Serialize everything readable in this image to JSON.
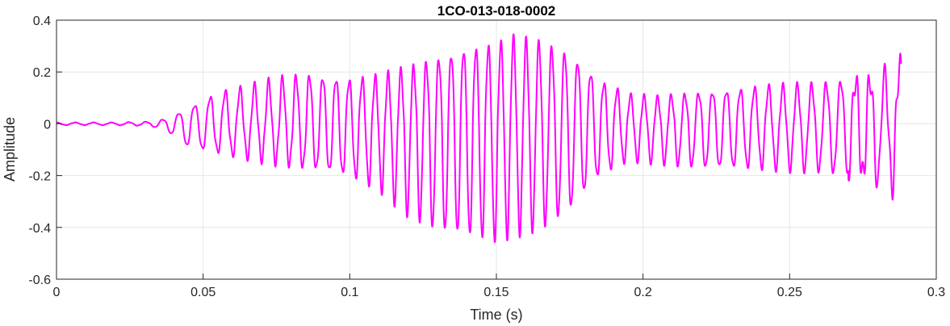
{
  "chart_data": {
    "type": "line",
    "title": "1CO-013-018-0002",
    "xlabel": "Time (s)",
    "ylabel": "Amplitude",
    "xlim": [
      0,
      0.3
    ],
    "ylim": [
      -0.6,
      0.4
    ],
    "xticks": [
      0,
      0.05,
      0.1,
      0.15,
      0.2,
      0.25,
      0.3
    ],
    "xtick_labels": [
      "0",
      "0.05",
      "0.1",
      "0.15",
      "0.2",
      "0.25",
      "0.3"
    ],
    "yticks": [
      -0.6,
      -0.4,
      -0.2,
      0,
      0.2,
      0.4
    ],
    "ytick_labels": [
      "-0.6",
      "-0.4",
      "-0.2",
      "0",
      "0.2",
      "0.4"
    ],
    "grid": true,
    "line_color": "#ff00ff",
    "series": [
      {
        "color": "#ff00ff",
        "x_range": [
          0,
          0.288
        ],
        "envelope": {
          "t": [
            0.0,
            0.02,
            0.032,
            0.038,
            0.045,
            0.055,
            0.065,
            0.075,
            0.085,
            0.1,
            0.11,
            0.12,
            0.13,
            0.14,
            0.15,
            0.155,
            0.165,
            0.175,
            0.185,
            0.195,
            0.205,
            0.22,
            0.24,
            0.26,
            0.27,
            0.28,
            0.288
          ],
          "max": [
            0.005,
            0.005,
            0.008,
            0.02,
            0.06,
            0.12,
            0.14,
            0.17,
            0.19,
            0.17,
            0.18,
            0.21,
            0.25,
            0.29,
            0.3,
            0.33,
            0.31,
            0.27,
            0.17,
            0.11,
            0.1,
            0.12,
            0.14,
            0.15,
            0.17,
            0.18,
            0.23
          ],
          "min": [
            -0.005,
            -0.005,
            -0.008,
            -0.03,
            -0.09,
            -0.11,
            -0.13,
            -0.15,
            -0.17,
            -0.2,
            -0.25,
            -0.35,
            -0.41,
            -0.43,
            -0.45,
            -0.43,
            -0.4,
            -0.33,
            -0.2,
            -0.14,
            -0.15,
            -0.17,
            -0.17,
            -0.18,
            -0.2,
            -0.23,
            -0.25
          ]
        },
        "oscillation_periods": {
          "t": [
            0.0,
            0.04,
            0.08,
            0.14,
            0.2,
            0.27,
            0.288
          ],
          "period": [
            0.0065,
            0.0055,
            0.0046,
            0.0042,
            0.0046,
            0.005,
            0.005
          ]
        }
      }
    ]
  }
}
